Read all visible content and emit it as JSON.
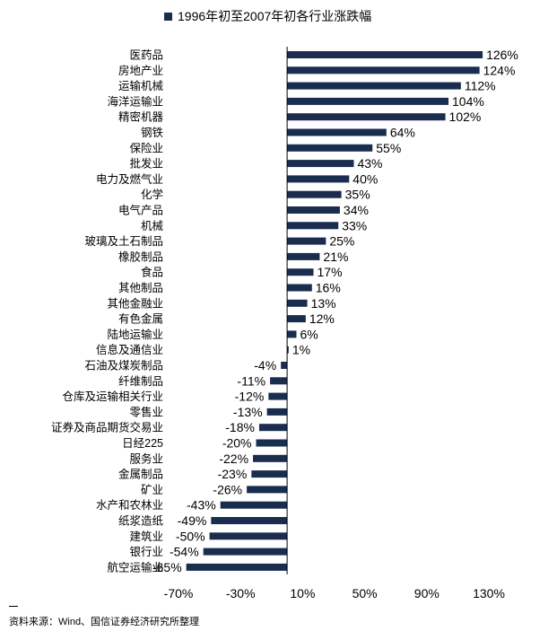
{
  "legend": {
    "label": "1996年初至2007年初各行业涨跌幅",
    "color": "#1a2d4f"
  },
  "source": "资料来源：Wind、国信证券经济研究所整理",
  "chart_data": {
    "type": "bar",
    "orientation": "horizontal",
    "series": [
      {
        "name": "1996年初至2007年初各行业涨跌幅",
        "color": "#1a2d4f"
      }
    ],
    "categories": [
      "医药品",
      "房地产业",
      "运输机械",
      "海洋运输业",
      "精密机器",
      "钢铁",
      "保险业",
      "批发业",
      "电力及燃气业",
      "化学",
      "电气产品",
      "机械",
      "玻璃及土石制品",
      "橡胶制品",
      "食品",
      "其他制品",
      "其他金融业",
      "有色金属",
      "陆地运输业",
      "信息及通信业",
      "石油及煤炭制品",
      "纤维制品",
      "仓库及运输相关行业",
      "零售业",
      "证券及商品期货交易业",
      "日经225",
      "服务业",
      "金属制品",
      "矿业",
      "水产和农林业",
      "纸浆造纸",
      "建筑业",
      "银行业",
      "航空运输业"
    ],
    "values": [
      126,
      124,
      112,
      104,
      102,
      64,
      55,
      43,
      40,
      35,
      34,
      33,
      25,
      21,
      17,
      16,
      13,
      12,
      6,
      1,
      -4,
      -11,
      -12,
      -13,
      -18,
      -20,
      -22,
      -23,
      -26,
      -43,
      -49,
      -50,
      -54,
      -65
    ],
    "value_labels": [
      "126%",
      "124%",
      "112%",
      "104%",
      "102%",
      "64%",
      "55%",
      "43%",
      "40%",
      "35%",
      "34%",
      "33%",
      "25%",
      "21%",
      "17%",
      "16%",
      "13%",
      "12%",
      "6%",
      "1%",
      "-4%",
      "-11%",
      "-12%",
      "-13%",
      "-18%",
      "-20%",
      "-22%",
      "-23%",
      "-26%",
      "-43%",
      "-49%",
      "-50%",
      "-54%",
      "-65%"
    ],
    "xlim": [
      -70,
      130
    ],
    "xticks": [
      -70,
      -30,
      10,
      50,
      90,
      130
    ],
    "xtick_labels": [
      "-70%",
      "-30%",
      "10%",
      "50%",
      "90%",
      "130%"
    ],
    "grid": false,
    "legend_position": "top"
  }
}
